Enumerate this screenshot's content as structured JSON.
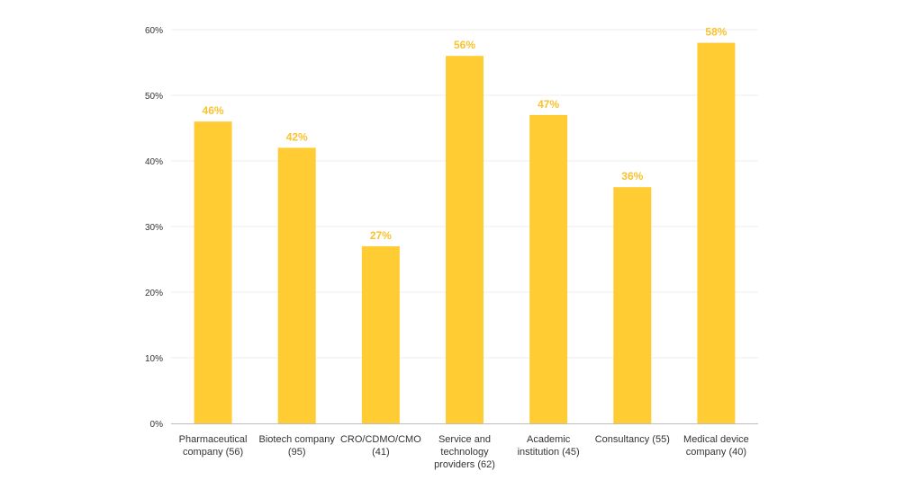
{
  "chart_data": {
    "type": "bar",
    "categories": [
      [
        "Pharmaceutical",
        "company (56)"
      ],
      [
        "Biotech company",
        "(95)"
      ],
      [
        "CRO/CDMO/CMO",
        "(41)"
      ],
      [
        "Service and",
        "technology",
        "providers (62)"
      ],
      [
        "Academic",
        "institution (45)"
      ],
      [
        "Consultancy (55)"
      ],
      [
        "Medical device",
        "company (40)"
      ]
    ],
    "values": [
      46,
      42,
      27,
      56,
      47,
      36,
      58
    ],
    "data_labels": [
      "46%",
      "42%",
      "27%",
      "56%",
      "47%",
      "36%",
      "58%"
    ],
    "ylim": [
      0,
      60
    ],
    "yticks": [
      0,
      10,
      20,
      30,
      40,
      50,
      60
    ],
    "ytick_labels": [
      "0%",
      "10%",
      "20%",
      "30%",
      "40%",
      "50%",
      "60%"
    ],
    "title": "",
    "xlabel": "",
    "ylabel": "",
    "grid": true,
    "bar_color": "#FFCC33",
    "label_color": "#F9C22E"
  }
}
